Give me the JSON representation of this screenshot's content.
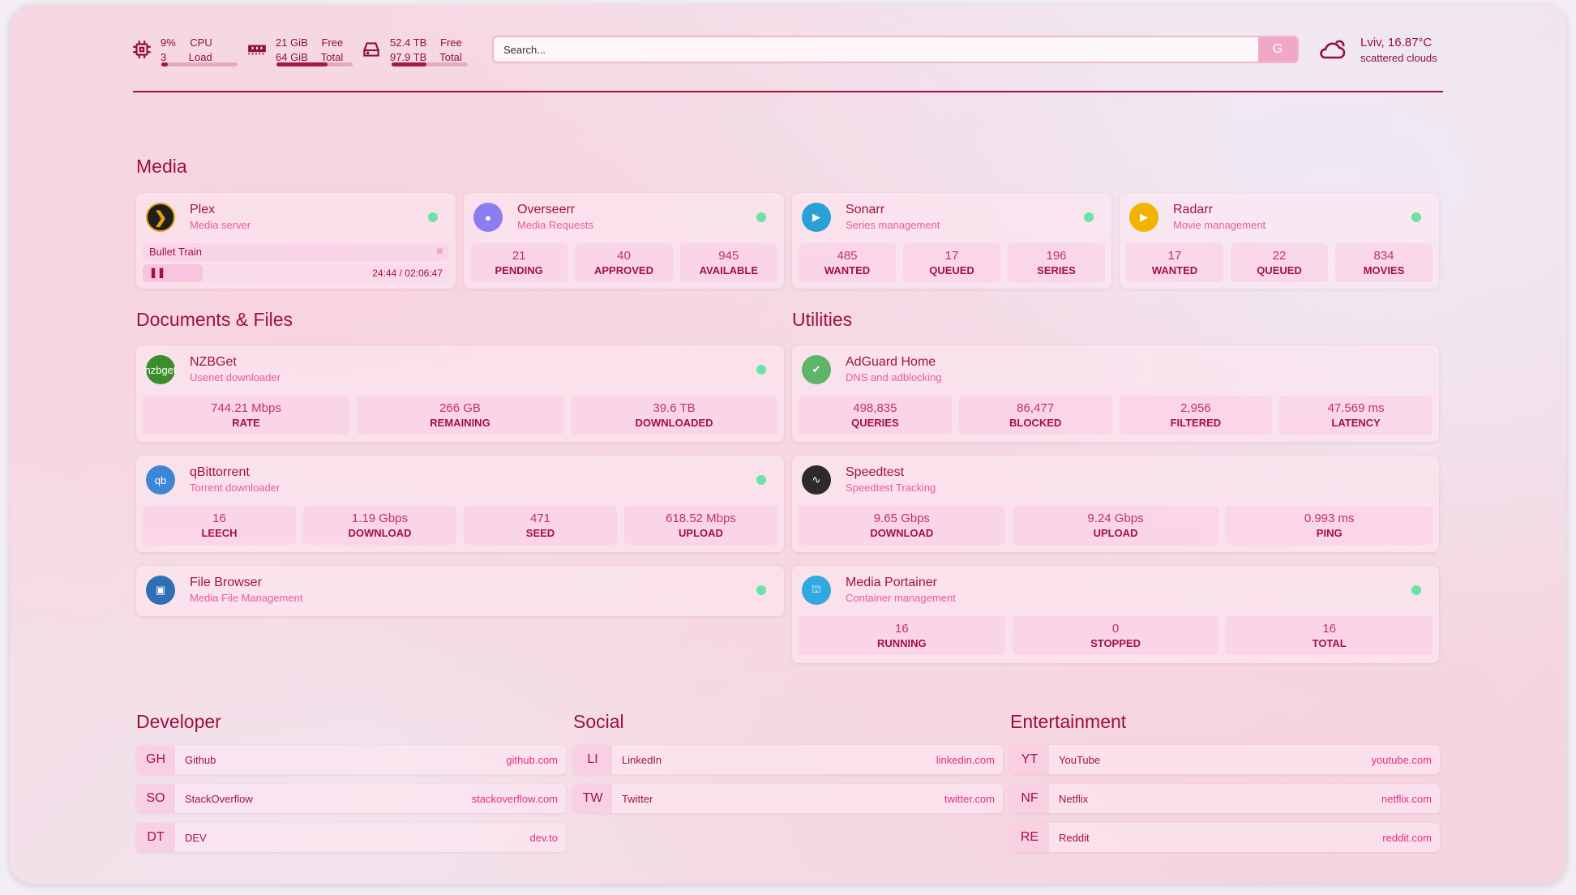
{
  "resources": {
    "cpu": {
      "icon": "cpu-icon",
      "value1": "9%",
      "value2": "3",
      "label1": "CPU",
      "label2": "Load",
      "usage": 0.09
    },
    "memory": {
      "icon": "memory-icon",
      "value1": "21 GiB",
      "value2": "64 GiB",
      "label1": "Free",
      "label2": "Total",
      "usage": 0.67
    },
    "disk": {
      "icon": "disk-icon",
      "value1": "52.4 TB",
      "value2": "97.9 TB",
      "label1": "Free",
      "label2": "Total",
      "usage": 0.46
    }
  },
  "search": {
    "placeholder": "Search...",
    "button": "G"
  },
  "weather": {
    "icon": "cloud-sun-icon",
    "location": "Lviv, 16.87°C",
    "condition": "scattered clouds"
  },
  "sections": {
    "media": "Media",
    "documents": "Documents & Files",
    "utilities": "Utilities",
    "developer": "Developer",
    "social": "Social",
    "entertainment": "Entertainment"
  },
  "plex": {
    "name": "Plex",
    "desc": "Media server",
    "icon": "plex-icon",
    "status": "online",
    "now_playing": "Bullet Train",
    "time": "24:44 / 02:06:47",
    "progress": 0.195
  },
  "services": [
    {
      "name": "Overseerr",
      "desc": "Media Requests",
      "icon": "overseerr-icon",
      "color": "#8b7cf0",
      "status": "online",
      "stats": [
        {
          "v": "21",
          "l": "PENDING"
        },
        {
          "v": "40",
          "l": "APPROVED"
        },
        {
          "v": "945",
          "l": "AVAILABLE"
        }
      ]
    },
    {
      "name": "Sonarr",
      "desc": "Series management",
      "icon": "sonarr-icon",
      "color": "#2a9fd8",
      "status": "online",
      "stats": [
        {
          "v": "485",
          "l": "WANTED"
        },
        {
          "v": "17",
          "l": "QUEUED"
        },
        {
          "v": "196",
          "l": "SERIES"
        }
      ]
    },
    {
      "name": "Radarr",
      "desc": "Movie management",
      "icon": "radarr-icon",
      "color": "#f0b400",
      "status": "online",
      "stats": [
        {
          "v": "17",
          "l": "WANTED"
        },
        {
          "v": "22",
          "l": "QUEUED"
        },
        {
          "v": "834",
          "l": "MOVIES"
        }
      ]
    },
    {
      "name": "NZBGet",
      "desc": "Usenet downloader",
      "icon": "nzbget-icon",
      "icon_text": "nzbget",
      "color": "#3a8f2a",
      "status": "online",
      "stats": [
        {
          "v": "744.21 Mbps",
          "l": "RATE"
        },
        {
          "v": "266 GB",
          "l": "REMAINING"
        },
        {
          "v": "39.6 TB",
          "l": "DOWNLOADED"
        }
      ]
    },
    {
      "name": "qBittorrent",
      "desc": "Torrent downloader",
      "icon": "qbittorrent-icon",
      "icon_text": "qb",
      "color": "#3d86d6",
      "status": "online",
      "stats": [
        {
          "v": "16",
          "l": "LEECH"
        },
        {
          "v": "1.19 Gbps",
          "l": "DOWNLOAD"
        },
        {
          "v": "471",
          "l": "SEED"
        },
        {
          "v": "618.52 Mbps",
          "l": "UPLOAD"
        }
      ]
    },
    {
      "name": "File Browser",
      "desc": "Media File Management",
      "icon": "file-browser-icon",
      "color": "#2f6fb5",
      "status": "online",
      "stats": []
    },
    {
      "name": "AdGuard Home",
      "desc": "DNS and adblocking",
      "icon": "adguard-icon",
      "color": "#5fb36a",
      "stats": [
        {
          "v": "498,835",
          "l": "QUERIES"
        },
        {
          "v": "86,477",
          "l": "BLOCKED"
        },
        {
          "v": "2,956",
          "l": "FILTERED"
        },
        {
          "v": "47.569 ms",
          "l": "LATENCY"
        }
      ]
    },
    {
      "name": "Speedtest",
      "desc": "Speedtest Tracking",
      "icon": "speedtest-icon",
      "color": "#2b2b2b",
      "stats": [
        {
          "v": "9.65 Gbps",
          "l": "DOWNLOAD"
        },
        {
          "v": "9.24 Gbps",
          "l": "UPLOAD"
        },
        {
          "v": "0.993 ms",
          "l": "PING"
        }
      ]
    },
    {
      "name": "Media Portainer",
      "desc": "Container management",
      "icon": "portainer-icon",
      "color": "#2fa9e0",
      "status": "online",
      "stats": [
        {
          "v": "16",
          "l": "RUNNING"
        },
        {
          "v": "0",
          "l": "STOPPED"
        },
        {
          "v": "16",
          "l": "TOTAL"
        }
      ]
    }
  ],
  "bookmarks": {
    "developer": [
      {
        "abbr": "GH",
        "name": "Github",
        "url": "github.com"
      },
      {
        "abbr": "SO",
        "name": "StackOverflow",
        "url": "stackoverflow.com"
      },
      {
        "abbr": "DT",
        "name": "DEV",
        "url": "dev.to"
      }
    ],
    "social": [
      {
        "abbr": "LI",
        "name": "LinkedIn",
        "url": "linkedin.com"
      },
      {
        "abbr": "TW",
        "name": "Twitter",
        "url": "twitter.com"
      }
    ],
    "entertainment": [
      {
        "abbr": "YT",
        "name": "YouTube",
        "url": "youtube.com"
      },
      {
        "abbr": "NF",
        "name": "Netflix",
        "url": "netflix.com"
      },
      {
        "abbr": "RE",
        "name": "Reddit",
        "url": "reddit.com"
      }
    ]
  }
}
